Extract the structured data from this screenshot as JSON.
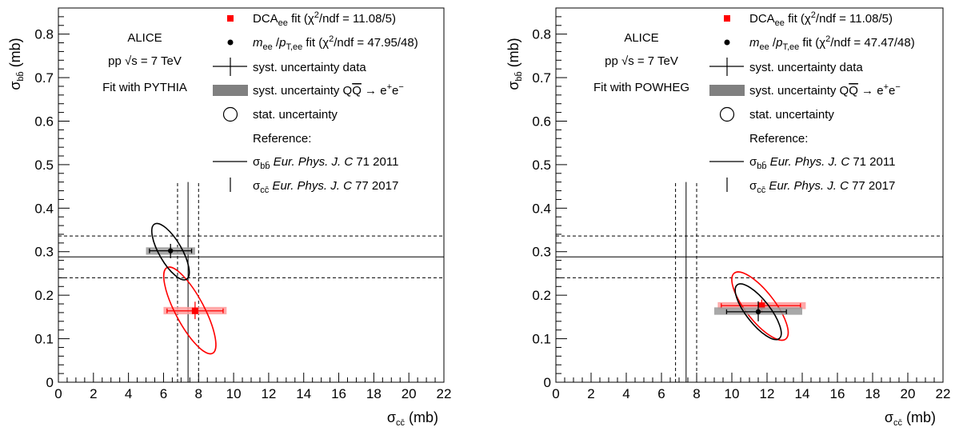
{
  "chart_data": [
    {
      "type": "scatter",
      "panel": "left",
      "xlabel": "σ_cc̄ (mb)",
      "ylabel": "σ_bb̄ (mb)",
      "xlim": [
        0,
        22
      ],
      "ylim": [
        0,
        0.86
      ],
      "xticks": [
        0,
        2,
        4,
        6,
        8,
        10,
        12,
        14,
        16,
        18,
        20,
        22
      ],
      "yticks": [
        0,
        0.1,
        0.2,
        0.3,
        0.4,
        0.5,
        0.6,
        0.7,
        0.8
      ],
      "annotations": [
        "ALICE",
        "pp √s = 7 TeV",
        "Fit with PYTHIA"
      ],
      "reference": {
        "sigma_bb": 0.288,
        "sigma_bb_band": [
          0.24,
          0.336
        ],
        "sigma_cc": 7.4,
        "sigma_cc_band": [
          6.8,
          8.0
        ]
      },
      "series": [
        {
          "name": "DCA_ee fit",
          "color": "#ff0000",
          "band_color": "#ff9a9a",
          "x": 7.8,
          "y": 0.164,
          "syst_x": [
            6.2,
            9.4
          ],
          "syst_y": [
            0.145,
            0.185
          ],
          "qq_band_x": [
            6.0,
            9.6
          ],
          "qq_band_y": [
            0.156,
            0.173
          ],
          "ellipse": {
            "cx": 7.5,
            "cy": 0.165,
            "rx_data": 2.15,
            "ry_data": 0.11,
            "angle": 62
          }
        },
        {
          "name": "m_ee / p_T,ee fit",
          "color": "#000000",
          "band_color": "#999999",
          "x": 6.4,
          "y": 0.302,
          "syst_x": [
            5.2,
            7.6
          ],
          "syst_y": [
            0.285,
            0.318
          ],
          "qq_band_x": [
            5.0,
            7.8
          ],
          "qq_band_y": [
            0.293,
            0.31
          ],
          "ellipse": {
            "cx": 6.4,
            "cy": 0.3,
            "rx_data": 1.7,
            "ry_data": 0.07,
            "angle": 60
          }
        }
      ],
      "legend": [
        {
          "marker": "red-square",
          "text": "DCA_ee fit (χ²/ndf = 11.08/5)"
        },
        {
          "marker": "black-dot",
          "text": "m_ee / p_T,ee fit (χ²/ndf = 47.95/48)"
        },
        {
          "marker": "cross",
          "text": "syst. uncertainty data"
        },
        {
          "marker": "gray-box",
          "text": "syst. uncertainty QQ̄ → e⁺e⁻"
        },
        {
          "marker": "circle",
          "text": "stat. uncertainty"
        },
        {
          "marker": "none",
          "text": "Reference:"
        },
        {
          "marker": "hline",
          "text": "σ_bb̄ Eur. Phys. J. C 71 2011"
        },
        {
          "marker": "vline",
          "text": "σ_cc̄ Eur. Phys. J. C 77 2017"
        }
      ]
    },
    {
      "type": "scatter",
      "panel": "right",
      "xlabel": "σ_cc̄ (mb)",
      "ylabel": "σ_bb̄ (mb)",
      "xlim": [
        0,
        22
      ],
      "ylim": [
        0,
        0.86
      ],
      "xticks": [
        0,
        2,
        4,
        6,
        8,
        10,
        12,
        14,
        16,
        18,
        20,
        22
      ],
      "yticks": [
        0,
        0.1,
        0.2,
        0.3,
        0.4,
        0.5,
        0.6,
        0.7,
        0.8
      ],
      "annotations": [
        "ALICE",
        "pp √s = 7 TeV",
        "Fit with POWHEG"
      ],
      "reference": {
        "sigma_bb": 0.288,
        "sigma_bb_band": [
          0.24,
          0.336
        ],
        "sigma_cc": 7.4,
        "sigma_cc_band": [
          6.8,
          8.0
        ]
      },
      "series": [
        {
          "name": "DCA_ee fit",
          "color": "#ff0000",
          "band_color": "#ff9a9a",
          "x": 11.7,
          "y": 0.176,
          "syst_x": [
            9.4,
            13.9
          ],
          "syst_y": [
            0.16,
            0.19
          ],
          "qq_band_x": [
            9.2,
            14.2
          ],
          "qq_band_y": [
            0.168,
            0.184
          ],
          "ellipse": {
            "cx": 11.6,
            "cy": 0.175,
            "rx_data": 2.6,
            "ry_data": 0.088,
            "angle": 52
          }
        },
        {
          "name": "m_ee / p_T,ee fit",
          "color": "#000000",
          "band_color": "#999999",
          "x": 11.5,
          "y": 0.162,
          "syst_x": [
            9.7,
            13.1
          ],
          "syst_y": [
            0.14,
            0.186
          ],
          "qq_band_x": [
            9.0,
            14.0
          ],
          "qq_band_y": [
            0.155,
            0.172
          ],
          "ellipse": {
            "cx": 11.5,
            "cy": 0.162,
            "rx_data": 2.1,
            "ry_data": 0.072,
            "angle": 52
          }
        }
      ],
      "legend": [
        {
          "marker": "red-square",
          "text": "DCA_ee fit (χ²/ndf = 11.08/5)"
        },
        {
          "marker": "black-dot",
          "text": "m_ee / p_T,ee fit (χ²/ndf = 47.47/48)"
        },
        {
          "marker": "cross",
          "text": "syst. uncertainty data"
        },
        {
          "marker": "gray-box",
          "text": "syst. uncertainty QQ̄ → e⁺e⁻"
        },
        {
          "marker": "circle",
          "text": "stat. uncertainty"
        },
        {
          "marker": "none",
          "text": "Reference:"
        },
        {
          "marker": "hline",
          "text": "σ_bb̄ Eur. Phys. J. C 71 2011"
        },
        {
          "marker": "vline",
          "text": "σ_cc̄ Eur. Phys. J. C 77 2017"
        }
      ]
    }
  ],
  "legend_parts": {
    "dca": "DCA",
    "ee": "ee",
    "fit_chi_open": " fit (χ",
    "two": "2",
    "ndf_left": "/ndf = 11.08/5)",
    "m": "m",
    "slash": " /",
    "p": "p",
    "tee": "T,ee",
    "ndf_mass_left": "/ndf = 47.95/48)",
    "ndf_mass_right": "/ndf = 47.47/48)",
    "syst_data": "syst. uncertainty data",
    "syst_qq_prefix": "syst. uncertainty Q",
    "qbar": "Q",
    "arrow_e": " → e",
    "plus": "+",
    "e": "e",
    "minus": "−",
    "stat": "stat. uncertainty",
    "reference": "Reference:",
    "sigma": "σ",
    "bb": "bb̄",
    "cc": "cc̄",
    "epj_bb_it": " Eur. Phys. J. C",
    "epj_bb_rest": " 71 2011",
    "epj_cc_it": " Eur. Phys. J. C",
    "epj_cc_rest": " 77 2017"
  },
  "labels": {
    "alice": "ALICE",
    "pp": "pp ",
    "sqrt": "√s",
    "energy": " = 7 TeV",
    "fit_pythia": "Fit with PYTHIA",
    "fit_powheg": "Fit with POWHEG",
    "mb": " (mb)"
  }
}
